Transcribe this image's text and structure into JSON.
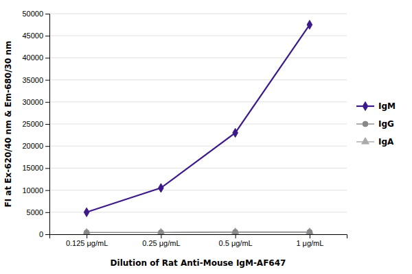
{
  "chart_data": {
    "type": "line",
    "categories": [
      "0.125 μg/mL",
      "0.25 μg/mL",
      "0.5 μg/mL",
      "1 μg/mL"
    ],
    "series": [
      {
        "name": "IgM",
        "color": "#3d1a8a",
        "marker": "diamond",
        "values": [
          5000,
          10500,
          23000,
          47500
        ]
      },
      {
        "name": "IgG",
        "color": "#888888",
        "marker": "circle",
        "values": [
          400,
          400,
          500,
          500
        ]
      },
      {
        "name": "IgA",
        "color": "#aaaaaa",
        "marker": "triangle",
        "values": [
          400,
          400,
          500,
          500
        ]
      }
    ],
    "xlabel": "Dilution of Rat Anti-Mouse IgM-AF647",
    "ylabel": "FI at Ex-620/40 nm & Em-680/30 nm",
    "ylim": [
      0,
      50000
    ],
    "yticks": [
      0,
      5000,
      10000,
      15000,
      20000,
      25000,
      30000,
      35000,
      40000,
      45000,
      50000
    ],
    "grid": true,
    "legend": "right"
  }
}
